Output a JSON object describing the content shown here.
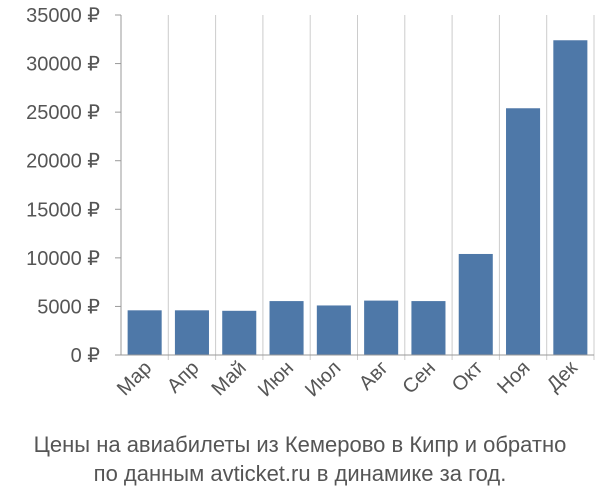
{
  "chart_data": {
    "type": "bar",
    "categories": [
      "Мар",
      "Апр",
      "Май",
      "Июн",
      "Июл",
      "Авг",
      "Сен",
      "Окт",
      "Ноя",
      "Дек"
    ],
    "values": [
      4600,
      4600,
      4550,
      5550,
      5100,
      5600,
      5550,
      10400,
      25400,
      32400
    ],
    "ylim": [
      0,
      35000
    ],
    "yticks": [
      0,
      5000,
      10000,
      15000,
      20000,
      25000,
      30000,
      35000
    ],
    "ytick_labels": [
      "0 ₽",
      "5000 ₽",
      "10000 ₽",
      "15000 ₽",
      "20000 ₽",
      "25000 ₽",
      "30000 ₽",
      "35000 ₽"
    ],
    "grid": "vertical",
    "colors": {
      "bar": "#4e78a8",
      "grid": "#cccccc",
      "axis": "#999999",
      "text": "#555555"
    }
  },
  "caption": {
    "line1": "Цены на авиабилеты из Кемерово в Кипр и обратно",
    "line2": "по данным avticket.ru в динамике за год."
  }
}
